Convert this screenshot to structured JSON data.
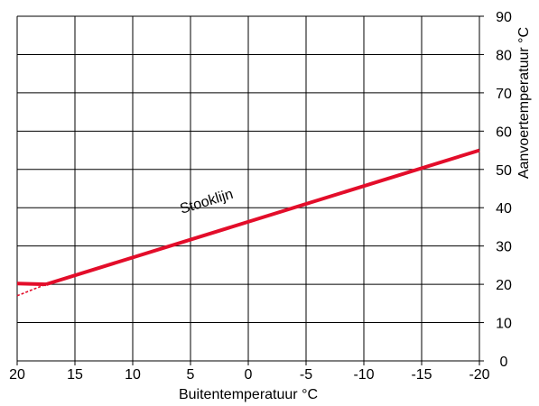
{
  "chart_data": {
    "type": "line",
    "title": "",
    "xlabel": "Buitentemperatuur °C",
    "ylabel": "Aanvoertemperatuur °C",
    "xlim": [
      20,
      -20
    ],
    "ylim": [
      0,
      90
    ],
    "x_ticks": [
      20,
      15,
      10,
      5,
      0,
      -5,
      -10,
      -15,
      -20
    ],
    "x_tick_labels": [
      "20",
      "15",
      "10",
      "5",
      "0",
      "-5",
      "-10",
      "-15",
      "-20"
    ],
    "y_ticks": [
      0,
      10,
      20,
      30,
      40,
      50,
      60,
      70,
      80,
      90
    ],
    "y_tick_labels": [
      "0",
      "10",
      "20",
      "30",
      "40",
      "50",
      "60",
      "70",
      "80",
      "90"
    ],
    "y_axis_side": "right",
    "grid": true,
    "legend": "none",
    "series": [
      {
        "style": "solid",
        "color": "#e30d2a",
        "x": [
          20,
          17.5
        ],
        "y": [
          20.2,
          20.0
        ]
      },
      {
        "style": "solid",
        "color": "#e30d2a",
        "x": [
          17.5,
          -20
        ],
        "y": [
          20.0,
          55.0
        ]
      },
      {
        "style": "dashed",
        "color": "#e30d2a",
        "x": [
          20,
          17.5
        ],
        "y": [
          17.0,
          20.0
        ]
      }
    ],
    "annotations": [
      {
        "text": "Stooklijn",
        "x": 3.5,
        "y": 40.5
      }
    ]
  }
}
